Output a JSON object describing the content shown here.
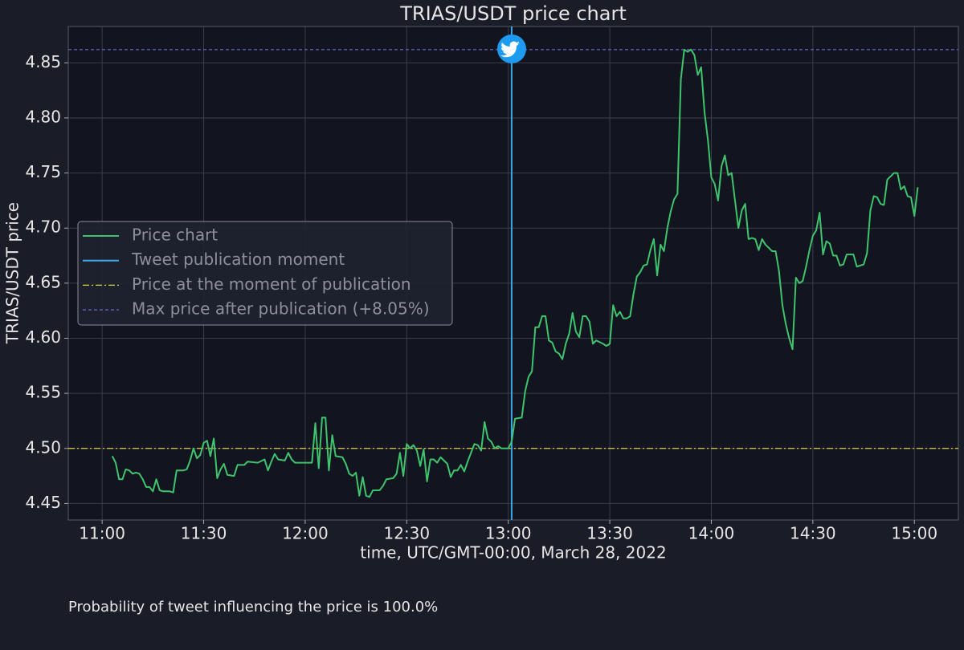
{
  "chart_data": {
    "type": "line",
    "title": "TRIAS/USDT price chart",
    "xlabel": "time, UTC/GMT-00:00, March 28, 2022",
    "ylabel": "TRIAS/USDT price",
    "note": "Probability of tweet influencing the price is 100.0%",
    "grid": true,
    "legend": "center left",
    "xlim": [
      "10:50",
      "15:13"
    ],
    "xticks": [
      "11:00",
      "11:30",
      "12:00",
      "12:30",
      "13:00",
      "13:30",
      "14:00",
      "14:30",
      "15:00"
    ],
    "ylim": [
      4.435,
      4.883
    ],
    "yticks": [
      4.45,
      {
        "value": 4.5,
        "label": "4.50"
      },
      4.55,
      {
        "value": 4.6,
        "label": "4.60"
      },
      4.65,
      {
        "value": 4.7,
        "label": "4.70"
      },
      4.75,
      {
        "value": 4.8,
        "label": "4.80"
      },
      4.85
    ],
    "x": [
      "11:03",
      "11:04",
      "11:05",
      "11:06",
      "11:07",
      "11:08",
      "11:09",
      "11:10",
      "11:11",
      "11:12",
      "11:13",
      "11:14",
      "11:15",
      "11:16",
      "11:17",
      "11:18",
      "11:20",
      "11:21",
      "11:22",
      "11:24",
      "11:25",
      "11:26",
      "11:27",
      "11:28",
      "11:29",
      "11:30",
      "11:31",
      "11:32",
      "11:33",
      "11:34",
      "11:35",
      "11:36",
      "11:37",
      "11:39",
      "11:40",
      "11:42",
      "11:43",
      "11:46",
      "11:48",
      "11:49",
      "11:50",
      "11:51",
      "11:52",
      "11:54",
      "11:55",
      "11:56",
      "11:57",
      "12:02",
      "12:03",
      "12:04",
      "12:05",
      "12:06",
      "12:07",
      "12:08",
      "12:09",
      "12:11",
      "12:12",
      "12:13",
      "12:14",
      "12:15",
      "12:16",
      "12:17",
      "12:18",
      "12:19",
      "12:20",
      "12:22",
      "12:23",
      "12:24",
      "12:26",
      "12:27",
      "12:28",
      "12:29",
      "12:30",
      "12:31",
      "12:32",
      "12:33",
      "12:34",
      "12:35",
      "12:36",
      "12:37",
      "12:38",
      "12:39",
      "12:40",
      "12:42",
      "12:43",
      "12:44",
      "12:45",
      "12:46",
      "12:47",
      "12:48",
      "12:49",
      "12:50",
      "12:51",
      "12:52",
      "12:53",
      "12:54",
      "12:55",
      "12:56",
      "12:57",
      "12:58",
      "13:00",
      "13:01",
      "13:02",
      "13:04",
      "13:05",
      "13:06",
      "13:07",
      "13:08",
      "13:09",
      "13:10",
      "13:11",
      "13:12",
      "13:13",
      "13:14",
      "13:15",
      "13:16",
      "13:17",
      "13:18",
      "13:19",
      "13:20",
      "13:21",
      "13:22",
      "13:23",
      "13:24",
      "13:25",
      "13:26",
      "13:28",
      "13:29",
      "13:30",
      "13:31",
      "13:32",
      "13:33",
      "13:34",
      "13:35",
      "13:36",
      "13:37",
      "13:38",
      "13:39",
      "13:40",
      "13:41",
      "13:42",
      "13:43",
      "13:44",
      "13:45",
      "13:46",
      "13:47",
      "13:48",
      "13:49",
      "13:50",
      "13:51",
      "13:52",
      "13:53",
      "13:54",
      "13:55",
      "13:56",
      "13:57",
      "13:58",
      "13:59",
      "14:00",
      "14:01",
      "14:02",
      "14:03",
      "14:04",
      "14:05",
      "14:06",
      "14:07",
      "14:08",
      "14:09",
      "14:10",
      "14:11",
      "14:12",
      "14:13",
      "14:14",
      "14:15",
      "14:16",
      "14:17",
      "14:18",
      "14:19",
      "14:20",
      "14:21",
      "14:22",
      "14:23",
      "14:24",
      "14:25",
      "14:26",
      "14:27",
      "14:28",
      "14:29",
      "14:30",
      "14:31",
      "14:32",
      "14:33",
      "14:34",
      "14:35",
      "14:36",
      "14:37",
      "14:38",
      "14:39",
      "14:40",
      "14:42",
      "14:43",
      "14:45",
      "14:46",
      "14:47",
      "14:48",
      "14:49",
      "14:50",
      "14:51",
      "14:52",
      "14:53",
      "14:54",
      "14:55",
      "14:56",
      "14:57",
      "14:58",
      "14:59",
      "15:00",
      "15:01"
    ],
    "series": [
      {
        "name": "Price chart",
        "color": "#3ec46d",
        "values": [
          4.493,
          4.487,
          4.472,
          4.472,
          4.481,
          4.48,
          4.477,
          4.478,
          4.477,
          4.472,
          4.465,
          4.465,
          4.461,
          4.472,
          4.462,
          4.461,
          4.461,
          4.46,
          4.48,
          4.48,
          4.481,
          4.489,
          4.5,
          4.491,
          4.494,
          4.505,
          4.507,
          4.493,
          4.509,
          4.473,
          4.481,
          4.486,
          4.476,
          4.475,
          4.485,
          4.485,
          4.488,
          4.487,
          4.49,
          4.48,
          4.488,
          4.495,
          4.49,
          4.489,
          4.496,
          4.49,
          4.487,
          4.487,
          4.523,
          4.482,
          4.528,
          4.528,
          4.48,
          4.512,
          4.493,
          4.492,
          4.486,
          4.477,
          4.475,
          4.478,
          4.457,
          4.474,
          4.457,
          4.456,
          4.462,
          4.462,
          4.466,
          4.472,
          4.473,
          4.477,
          4.496,
          4.475,
          4.504,
          4.5,
          4.503,
          4.498,
          4.484,
          4.499,
          4.47,
          4.49,
          4.49,
          4.487,
          4.492,
          4.486,
          4.474,
          4.48,
          4.48,
          4.485,
          4.479,
          4.488,
          4.496,
          4.504,
          4.503,
          4.498,
          4.524,
          4.509,
          4.506,
          4.5,
          4.502,
          4.5,
          4.5,
          4.506,
          4.527,
          4.528,
          4.552,
          4.565,
          4.57,
          4.61,
          4.61,
          4.62,
          4.62,
          4.598,
          4.596,
          4.588,
          4.586,
          4.581,
          4.595,
          4.604,
          4.623,
          4.606,
          4.601,
          4.62,
          4.62,
          4.615,
          4.595,
          4.598,
          4.595,
          4.593,
          4.595,
          4.63,
          4.62,
          4.624,
          4.618,
          4.618,
          4.62,
          4.64,
          4.656,
          4.66,
          4.666,
          4.667,
          4.68,
          4.69,
          4.657,
          4.685,
          4.679,
          4.7,
          4.715,
          4.726,
          4.731,
          4.835,
          4.862,
          4.86,
          4.862,
          4.857,
          4.839,
          4.846,
          4.805,
          4.78,
          4.746,
          4.74,
          4.725,
          4.756,
          4.766,
          4.748,
          4.75,
          4.725,
          4.7,
          4.716,
          4.722,
          4.69,
          4.691,
          4.69,
          4.68,
          4.69,
          4.685,
          4.682,
          4.679,
          4.679,
          4.661,
          4.63,
          4.613,
          4.6,
          4.59,
          4.655,
          4.65,
          4.652,
          4.665,
          4.68,
          4.693,
          4.698,
          4.714,
          4.676,
          4.688,
          4.686,
          4.675,
          4.675,
          4.666,
          4.667,
          4.676,
          4.676,
          4.665,
          4.667,
          4.677,
          4.716,
          4.729,
          4.728,
          4.722,
          4.721,
          4.744,
          4.747,
          4.75,
          4.75,
          4.735,
          4.738,
          4.729,
          4.728,
          4.711,
          4.737
        ]
      }
    ],
    "vline": {
      "name": "Tweet publication moment",
      "color": "#3fa9e8",
      "x": "13:01"
    },
    "hlines": [
      {
        "name": "Price at the moment of publication",
        "color": "#e2d14a",
        "value": 4.5,
        "style": "dashdot"
      },
      {
        "name": "Max price after publication (+8.05%)",
        "color": "#6a6ad8",
        "value": 4.862,
        "style": "dashed"
      }
    ]
  }
}
